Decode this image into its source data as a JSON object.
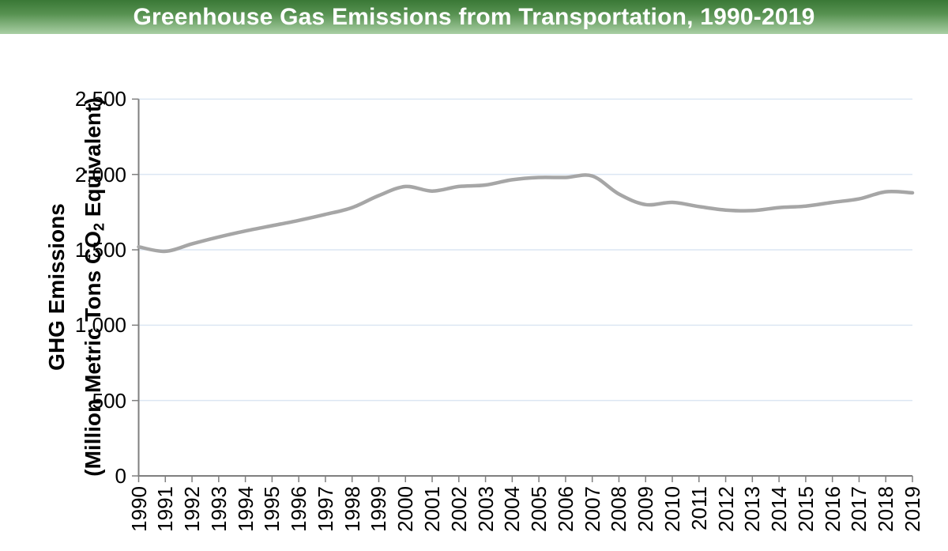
{
  "header": {
    "title": "Greenhouse Gas Emissions from Transportation, 1990-2019",
    "bg_gradient_top": "#3a7836",
    "bg_gradient_bottom": "#a9cfa4",
    "text_color": "#ffffff"
  },
  "y_axis": {
    "title_line1": "GHG Emissions",
    "title_line2_pre": "(Million Metric Tons CO",
    "title_line2_sub": "2",
    "title_line2_post": " Equivalent)",
    "tick_labels": [
      "0",
      "500",
      "1,000",
      "1,500",
      "2,000",
      "2,500"
    ]
  },
  "chart_data": {
    "type": "line",
    "title": "Greenhouse Gas Emissions from Transportation, 1990-2019",
    "xlabel": "",
    "ylabel": "GHG Emissions (Million Metric Tons CO2 Equivalent)",
    "ylim": [
      0,
      2500
    ],
    "yticks": [
      0,
      500,
      1000,
      1500,
      2000,
      2500
    ],
    "grid": "horizontal",
    "gridline_color": "#dce6f3",
    "axis_color": "#7f7f7f",
    "legend": "none",
    "line_smoothed": true,
    "x": [
      1990,
      1991,
      1992,
      1993,
      1994,
      1995,
      1996,
      1997,
      1998,
      1999,
      2000,
      2001,
      2002,
      2003,
      2004,
      2005,
      2006,
      2007,
      2008,
      2009,
      2010,
      2011,
      2012,
      2013,
      2014,
      2015,
      2016,
      2017,
      2018,
      2019
    ],
    "series": [
      {
        "name": "GHG Emissions",
        "color": "#a6a6a6",
        "values": [
          1520,
          1490,
          1540,
          1585,
          1625,
          1660,
          1695,
          1735,
          1780,
          1860,
          1920,
          1890,
          1920,
          1930,
          1965,
          1980,
          1980,
          1990,
          1870,
          1800,
          1815,
          1787,
          1764,
          1760,
          1780,
          1790,
          1815,
          1838,
          1885,
          1878
        ]
      }
    ]
  }
}
